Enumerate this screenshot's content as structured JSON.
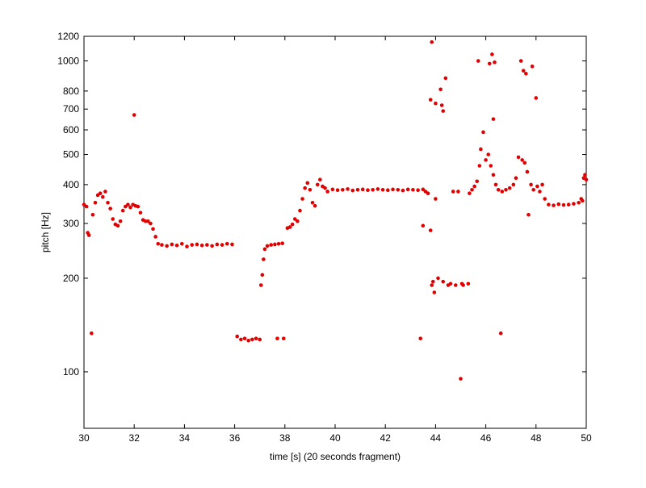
{
  "chart_data": {
    "type": "scatter",
    "xlabel": "time [s] (20 seconds fragment)",
    "ylabel": "pitch [Hz]",
    "color": "#e00000",
    "log_y": true,
    "xlim": [
      30,
      50
    ],
    "ylim": [
      65.8,
      1200
    ],
    "xticks": [
      30,
      32,
      34,
      36,
      38,
      40,
      42,
      44,
      46,
      48,
      50
    ],
    "yticks": [
      100,
      200,
      300,
      400,
      500,
      600,
      700,
      800,
      1000,
      1200
    ],
    "x": [
      30.0,
      30.1,
      30.15,
      30.2,
      30.3,
      30.35,
      30.45,
      30.55,
      30.65,
      30.75,
      30.85,
      30.95,
      31.05,
      31.15,
      31.25,
      31.35,
      31.45,
      31.55,
      31.65,
      31.75,
      31.85,
      31.95,
      32.0,
      32.05,
      32.15,
      32.25,
      32.35,
      32.45,
      32.55,
      32.65,
      32.75,
      32.85,
      32.95,
      33.1,
      33.3,
      33.5,
      33.7,
      33.9,
      34.1,
      34.3,
      34.5,
      34.7,
      34.9,
      35.1,
      35.3,
      35.5,
      35.7,
      35.9,
      36.1,
      36.25,
      36.4,
      36.55,
      36.7,
      36.85,
      37.0,
      37.05,
      37.1,
      37.15,
      37.2,
      37.3,
      37.45,
      37.6,
      37.75,
      37.9,
      37.7,
      37.95,
      38.1,
      38.2,
      38.3,
      38.4,
      38.5,
      38.6,
      38.7,
      38.8,
      38.9,
      39.0,
      39.1,
      39.2,
      39.3,
      39.4,
      39.5,
      39.6,
      39.7,
      39.9,
      40.1,
      40.3,
      40.5,
      40.7,
      40.9,
      41.1,
      41.3,
      41.5,
      41.7,
      41.9,
      42.1,
      42.3,
      42.5,
      42.7,
      42.9,
      43.1,
      43.3,
      43.5,
      43.4,
      43.5,
      43.6,
      43.7,
      43.8,
      43.85,
      43.8,
      43.85,
      43.9,
      43.95,
      44.0,
      44.0,
      44.1,
      44.2,
      44.25,
      44.3,
      44.3,
      44.4,
      44.5,
      44.6,
      44.7,
      44.8,
      44.9,
      45.0,
      45.05,
      45.1,
      45.3,
      45.35,
      45.45,
      45.55,
      45.65,
      45.7,
      45.75,
      45.8,
      45.9,
      46.0,
      46.1,
      46.15,
      46.2,
      46.25,
      46.3,
      46.3,
      46.35,
      46.4,
      46.5,
      46.6,
      46.65,
      46.8,
      46.95,
      47.1,
      47.2,
      47.3,
      47.4,
      47.45,
      47.5,
      47.55,
      47.6,
      47.65,
      47.7,
      47.8,
      47.85,
      47.9,
      48.0,
      48.05,
      48.15,
      48.25,
      48.35,
      48.5,
      48.7,
      48.9,
      49.1,
      49.3,
      49.5,
      49.7,
      49.8,
      49.85,
      49.9,
      49.95,
      50.0
    ],
    "values": [
      345,
      340,
      280,
      275,
      133,
      320,
      350,
      370,
      375,
      365,
      380,
      350,
      335,
      310,
      298,
      295,
      305,
      330,
      340,
      345,
      338,
      345,
      670,
      342,
      340,
      325,
      308,
      305,
      305,
      300,
      288,
      272,
      258,
      256,
      254,
      257,
      255,
      258,
      253,
      256,
      257,
      255,
      256,
      254,
      257,
      256,
      258,
      257,
      130,
      127,
      128,
      126,
      127,
      128,
      127,
      190,
      205,
      230,
      248,
      254,
      256,
      257,
      258,
      259,
      128,
      128,
      290,
      292,
      298,
      310,
      305,
      330,
      360,
      390,
      405,
      385,
      350,
      342,
      400,
      415,
      395,
      390,
      380,
      386,
      384,
      385,
      387,
      383,
      385,
      386,
      384,
      385,
      387,
      385,
      384,
      386,
      385,
      383,
      386,
      385,
      384,
      386,
      128,
      295,
      380,
      375,
      750,
      1150,
      285,
      190,
      195,
      180,
      360,
      730,
      200,
      810,
      720,
      690,
      195,
      880,
      190,
      192,
      380,
      190,
      380,
      95,
      192,
      190,
      192,
      375,
      385,
      395,
      410,
      1000,
      460,
      520,
      590,
      480,
      500,
      980,
      460,
      1050,
      430,
      650,
      990,
      400,
      385,
      133,
      380,
      385,
      390,
      400,
      420,
      490,
      1000,
      480,
      930,
      470,
      910,
      440,
      320,
      400,
      960,
      385,
      760,
      395,
      380,
      400,
      360,
      345,
      343,
      346,
      344,
      345,
      347,
      350,
      360,
      355,
      420,
      430,
      415
    ]
  }
}
